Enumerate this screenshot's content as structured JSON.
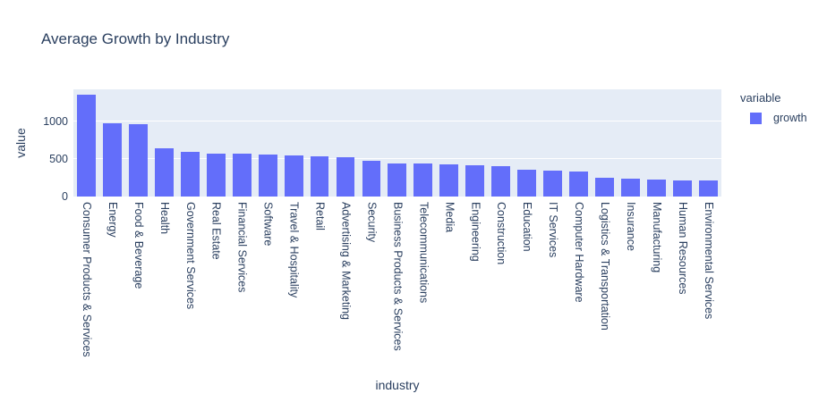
{
  "title": "Average Growth by Industry",
  "colors": {
    "accent": "#636efa",
    "plot_background": "#e5ecf6",
    "text": "#2a3f5f",
    "gridline": "#ffffff",
    "page_background": "#ffffff"
  },
  "legend": {
    "title": "variable",
    "entries": [
      {
        "label": "growth",
        "color": "#636efa"
      }
    ]
  },
  "chart_data": {
    "type": "bar",
    "title": "Average Growth by Industry",
    "xlabel": "industry",
    "ylabel": "value",
    "legend_title": "variable",
    "legend_position": "right-top",
    "grid": true,
    "plot_bgcolor": "#e5ecf6",
    "bar_color": "#636efa",
    "ylim": [
      0,
      1435
    ],
    "yticks": [
      0,
      500,
      1000
    ],
    "categories": [
      "Consumer Products & Services",
      "Energy",
      "Food & Beverage",
      "Health",
      "Government Services",
      "Real Estate",
      "Financial Services",
      "Software",
      "Travel & Hospitality",
      "Retail",
      "Advertising & Marketing",
      "Security",
      "Business Products & Services",
      "Telecommunications",
      "Media",
      "Engineering",
      "Construction",
      "Education",
      "IT Services",
      "Computer Hardware",
      "Logistics & Transportation",
      "Insurance",
      "Manufacturing",
      "Human Resources",
      "Environmental Services"
    ],
    "series": [
      {
        "name": "growth",
        "values": [
          1360,
          985,
          975,
          650,
          595,
          580,
          573,
          560,
          548,
          535,
          522,
          480,
          448,
          440,
          437,
          420,
          408,
          362,
          344,
          340,
          252,
          238,
          228,
          220,
          215
        ]
      }
    ]
  }
}
